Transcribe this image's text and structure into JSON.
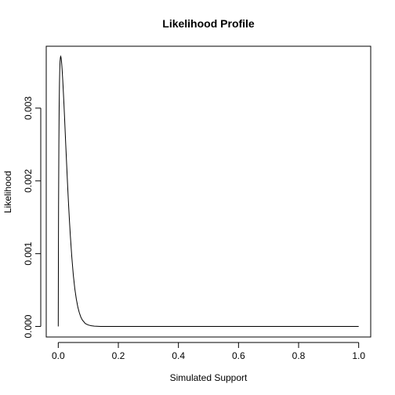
{
  "chart_data": {
    "type": "line",
    "title": "Likelihood Profile",
    "xlabel": "Simulated Support",
    "ylabel": "Likelihood",
    "xlim": [
      -0.04,
      1.04
    ],
    "ylim": [
      -0.000145,
      0.00385
    ],
    "x_ticks": [
      0.0,
      0.2,
      0.4,
      0.6,
      0.8,
      1.0
    ],
    "x_tick_labels": [
      "0.0",
      "0.2",
      "0.4",
      "0.6",
      "0.8",
      "1.0"
    ],
    "y_ticks": [
      0.0,
      0.001,
      0.002,
      0.003
    ],
    "y_tick_labels": [
      "0.000",
      "0.001",
      "0.002",
      "0.003"
    ],
    "grid": false,
    "legend": "none",
    "line_color": "#000000",
    "series": [
      {
        "x": [
          0.0,
          0.0005,
          0.001,
          0.002,
          0.003,
          0.004,
          0.005,
          0.006,
          0.007,
          0.008,
          0.009,
          0.01,
          0.011,
          0.012,
          0.013,
          0.015,
          0.017,
          0.019,
          0.021,
          0.023,
          0.025,
          0.028,
          0.031,
          0.034,
          0.037,
          0.04,
          0.045,
          0.05,
          0.055,
          0.06,
          0.065,
          0.07,
          0.075,
          0.08,
          0.09,
          0.1,
          0.11,
          0.12,
          0.14,
          0.16,
          0.2,
          0.3,
          0.4,
          0.5,
          0.6,
          0.7,
          0.8,
          0.9,
          1.0
        ],
        "y": [
          0.0,
          0.00096,
          0.00164,
          0.00249,
          0.00301,
          0.00333,
          0.00353,
          0.00364,
          0.00369,
          0.00371,
          0.0037,
          0.00367,
          0.00363,
          0.00358,
          0.00352,
          0.00338,
          0.00322,
          0.00305,
          0.00287,
          0.00268,
          0.00249,
          0.00222,
          0.00195,
          0.0017,
          0.00147,
          0.00126,
          0.00096,
          0.00071,
          0.00052,
          0.00038,
          0.00027,
          0.00019,
          0.00013,
          9e-05,
          4e-05,
          2e-05,
          1e-05,
          4e-06,
          1e-06,
          0.0,
          0.0,
          0.0,
          0.0,
          0.0,
          0.0,
          0.0,
          0.0,
          0.0,
          0.0
        ]
      }
    ]
  }
}
